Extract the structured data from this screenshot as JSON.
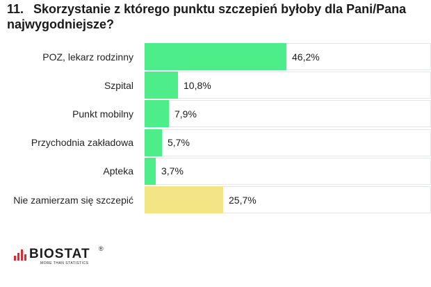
{
  "header": {
    "number": "11.",
    "title_line1": "Skorzystanie z którego punktu szczepień byłoby dla Pani/Pana",
    "title_line2": "najwygodniejsze?"
  },
  "chart_data": {
    "type": "bar",
    "orientation": "horizontal",
    "title": "Skorzystanie z którego punktu szczepień byłoby dla Pani/Pana najwygodniejsze?",
    "categories": [
      "POZ, lekarz rodzinny",
      "Szpital",
      "Punkt mobilny",
      "Przychodnia zakładowa",
      "Apteka",
      "Nie zamierzam się szczepić"
    ],
    "values": [
      46.2,
      10.8,
      7.9,
      5.7,
      3.7,
      25.7
    ],
    "value_labels": [
      "46,2%",
      "10,8%",
      "7,9%",
      "5,7%",
      "3,7%",
      "25,7%"
    ],
    "colors": [
      "#4ded8a",
      "#4ded8a",
      "#4ded8a",
      "#4ded8a",
      "#4ded8a",
      "#f3e585"
    ],
    "xlim": [
      0,
      93.5
    ],
    "grid": false,
    "legend": "none"
  },
  "logo": {
    "name": "BIOSTAT",
    "registered": "®",
    "tagline": "MORE THAN STATISTICS"
  }
}
